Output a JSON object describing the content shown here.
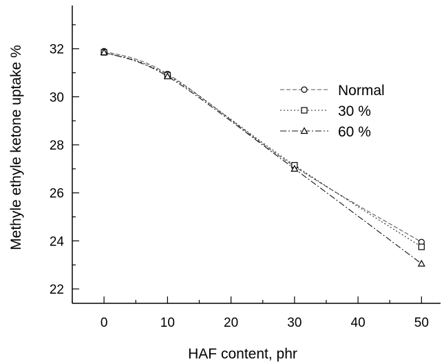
{
  "chart_data": {
    "type": "line",
    "title": "",
    "xlabel": "HAF content, phr",
    "ylabel": "Methyle ethyle ketone uptake %",
    "xlim": [
      -5,
      53
    ],
    "ylim": [
      21.4,
      33.8
    ],
    "xticks": [
      0,
      10,
      20,
      30,
      40,
      50
    ],
    "yticks": [
      22,
      24,
      26,
      28,
      30,
      32
    ],
    "x": [
      0,
      10,
      30,
      50
    ],
    "grid": false,
    "legend_position": "right-center",
    "series": [
      {
        "name": "Normal",
        "marker": "circle",
        "dash": "6,3",
        "color": "#555555",
        "values": [
          31.9,
          30.95,
          27.1,
          23.95
        ]
      },
      {
        "name": "30 %",
        "marker": "square",
        "dash": "2,3",
        "color": "#222222",
        "values": [
          31.85,
          30.9,
          27.15,
          23.75
        ]
      },
      {
        "name": "60 %",
        "marker": "triangle",
        "dash": "9,3,2,3",
        "color": "#111111",
        "values": [
          31.85,
          30.85,
          27.0,
          23.05
        ]
      }
    ]
  }
}
